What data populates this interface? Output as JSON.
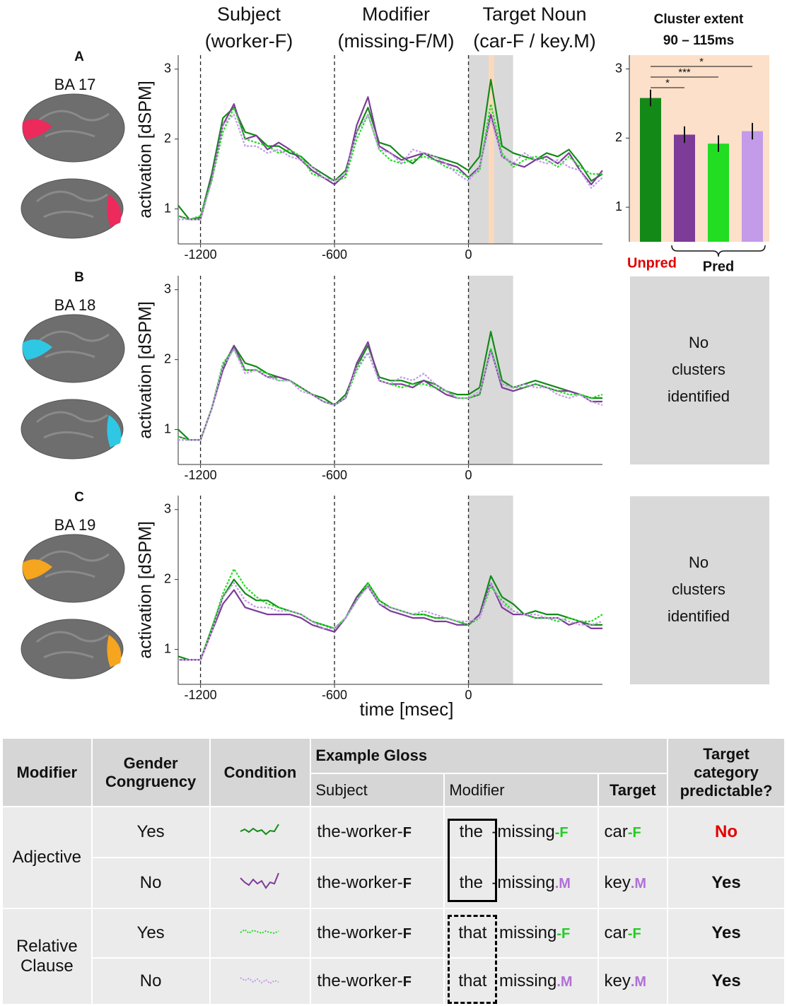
{
  "chart_data": [
    {
      "type": "line",
      "panel": "A",
      "region": "BA 17",
      "region_color": "#ec2a5c",
      "y_label": "activation [dSPM]",
      "annotations": [
        {
          "lines": [
            "Subject",
            "(worker-F)"
          ]
        },
        {
          "lines": [
            "Modifier",
            "(missing-F/M)"
          ]
        },
        {
          "lines": [
            "Target Noun",
            "(car-F / key.M)"
          ]
        }
      ],
      "xlim": [
        -1300,
        600
      ],
      "ylim": [
        0.5,
        3.2
      ],
      "xticks": [
        -1200,
        -600,
        0
      ],
      "yticks": [
        1,
        2,
        3
      ],
      "vlines": [
        -1200,
        -600,
        0
      ],
      "shaded_regions": [
        {
          "x": [
            0,
            200
          ],
          "color": "#d9d9d9"
        },
        {
          "x": [
            90,
            115
          ],
          "color": "#fcd9bd"
        }
      ],
      "x": [
        -1300,
        -1250,
        -1200,
        -1150,
        -1100,
        -1050,
        -1000,
        -950,
        -900,
        -850,
        -800,
        -750,
        -700,
        -650,
        -600,
        -550,
        -500,
        -450,
        -400,
        -350,
        -300,
        -250,
        -200,
        -150,
        -100,
        -50,
        0,
        50,
        100,
        150,
        200,
        250,
        300,
        350,
        400,
        450,
        500,
        550,
        600
      ],
      "series": [
        {
          "color": "#138a17",
          "style": "solid",
          "values": [
            1.05,
            0.85,
            0.88,
            1.5,
            2.3,
            2.45,
            2.1,
            2.05,
            1.9,
            1.9,
            1.8,
            1.75,
            1.6,
            1.5,
            1.4,
            1.55,
            2.1,
            2.45,
            1.95,
            1.9,
            1.75,
            1.65,
            1.8,
            1.75,
            1.7,
            1.65,
            1.55,
            1.75,
            2.85,
            1.9,
            1.8,
            1.75,
            1.7,
            1.8,
            1.75,
            1.85,
            1.65,
            1.4,
            1.5
          ]
        },
        {
          "color": "#7d3c98",
          "style": "solid",
          "values": [
            0.9,
            0.85,
            0.85,
            1.45,
            2.2,
            2.5,
            2.0,
            2.05,
            1.85,
            1.95,
            1.85,
            1.7,
            1.55,
            1.45,
            1.35,
            1.5,
            2.2,
            2.6,
            1.9,
            1.8,
            1.7,
            1.75,
            1.8,
            1.7,
            1.65,
            1.6,
            1.45,
            1.6,
            2.35,
            1.75,
            1.65,
            1.6,
            1.7,
            1.75,
            1.65,
            1.8,
            1.55,
            1.35,
            1.55
          ]
        },
        {
          "color": "#22dd22",
          "style": "dotted",
          "values": [
            0.9,
            0.85,
            0.9,
            1.4,
            2.1,
            2.45,
            2.0,
            1.95,
            1.9,
            1.8,
            1.85,
            1.75,
            1.5,
            1.45,
            1.4,
            1.45,
            2.0,
            2.35,
            1.85,
            1.7,
            1.65,
            1.7,
            1.75,
            1.7,
            1.6,
            1.55,
            1.45,
            1.55,
            2.5,
            1.8,
            1.6,
            1.7,
            1.75,
            1.7,
            1.6,
            1.75,
            1.6,
            1.5,
            1.5
          ]
        },
        {
          "color": "#c39be8",
          "style": "dotted",
          "values": [
            0.85,
            0.85,
            0.85,
            1.4,
            2.2,
            2.35,
            1.9,
            1.9,
            1.8,
            1.85,
            1.75,
            1.7,
            1.6,
            1.45,
            1.4,
            1.5,
            2.1,
            2.35,
            1.85,
            1.8,
            1.65,
            1.85,
            1.8,
            1.75,
            1.65,
            1.5,
            1.4,
            1.6,
            2.3,
            1.75,
            1.65,
            1.8,
            1.7,
            1.65,
            1.7,
            1.6,
            1.55,
            1.3,
            1.45
          ]
        }
      ]
    },
    {
      "type": "line",
      "panel": "B",
      "region": "BA 18",
      "region_color": "#2ec8e4",
      "y_label": "activation [dSPM]",
      "side_note": [
        "No",
        "clusters",
        "identified"
      ],
      "xlim": [
        -1300,
        600
      ],
      "ylim": [
        0.5,
        3.2
      ],
      "xticks": [
        -1200,
        -600,
        0
      ],
      "yticks": [
        1,
        2,
        3
      ],
      "vlines": [
        -1200,
        -600,
        0
      ],
      "shaded_regions": [
        {
          "x": [
            0,
            200
          ],
          "color": "#d9d9d9"
        }
      ],
      "x": [
        -1300,
        -1250,
        -1200,
        -1150,
        -1100,
        -1050,
        -1000,
        -950,
        -900,
        -850,
        -800,
        -750,
        -700,
        -650,
        -600,
        -550,
        -500,
        -450,
        -400,
        -350,
        -300,
        -250,
        -200,
        -150,
        -100,
        -50,
        0,
        50,
        100,
        150,
        200,
        250,
        300,
        350,
        400,
        450,
        500,
        550,
        600
      ],
      "series": [
        {
          "color": "#138a17",
          "style": "solid",
          "values": [
            1.0,
            0.85,
            0.85,
            1.3,
            1.9,
            2.2,
            1.95,
            1.9,
            1.8,
            1.75,
            1.7,
            1.6,
            1.5,
            1.45,
            1.35,
            1.5,
            1.9,
            2.2,
            1.75,
            1.7,
            1.7,
            1.65,
            1.7,
            1.65,
            1.55,
            1.5,
            1.5,
            1.6,
            2.4,
            1.7,
            1.6,
            1.65,
            1.7,
            1.65,
            1.6,
            1.55,
            1.5,
            1.45,
            1.45
          ]
        },
        {
          "color": "#7d3c98",
          "style": "solid",
          "values": [
            0.9,
            0.85,
            0.85,
            1.3,
            1.85,
            2.2,
            1.85,
            1.85,
            1.75,
            1.75,
            1.7,
            1.6,
            1.5,
            1.4,
            1.35,
            1.45,
            1.95,
            2.25,
            1.7,
            1.65,
            1.65,
            1.6,
            1.7,
            1.6,
            1.5,
            1.45,
            1.45,
            1.5,
            2.15,
            1.6,
            1.55,
            1.6,
            1.65,
            1.6,
            1.55,
            1.55,
            1.5,
            1.4,
            1.4
          ]
        },
        {
          "color": "#22dd22",
          "style": "dotted",
          "values": [
            0.9,
            0.85,
            0.85,
            1.3,
            1.95,
            2.15,
            1.85,
            1.85,
            1.8,
            1.7,
            1.7,
            1.6,
            1.5,
            1.4,
            1.35,
            1.45,
            1.85,
            2.1,
            1.7,
            1.65,
            1.6,
            1.65,
            1.65,
            1.6,
            1.55,
            1.45,
            1.45,
            1.5,
            2.15,
            1.65,
            1.6,
            1.6,
            1.65,
            1.6,
            1.55,
            1.5,
            1.5,
            1.45,
            1.5
          ]
        },
        {
          "color": "#c39be8",
          "style": "dotted",
          "values": [
            0.85,
            0.85,
            0.85,
            1.3,
            1.9,
            2.15,
            1.8,
            1.85,
            1.75,
            1.7,
            1.7,
            1.55,
            1.5,
            1.4,
            1.35,
            1.45,
            1.9,
            2.1,
            1.7,
            1.65,
            1.75,
            1.7,
            1.8,
            1.65,
            1.55,
            1.45,
            1.45,
            1.55,
            2.1,
            1.65,
            1.6,
            1.65,
            1.6,
            1.6,
            1.5,
            1.45,
            1.5,
            1.4,
            1.35
          ]
        }
      ]
    },
    {
      "type": "line",
      "panel": "C",
      "region": "BA 19",
      "region_color": "#f5a51e",
      "y_label": "activation [dSPM]",
      "x_label": "time [msec]",
      "side_note": [
        "No",
        "clusters",
        "identified"
      ],
      "xlim": [
        -1300,
        600
      ],
      "ylim": [
        0.5,
        3.2
      ],
      "xticks": [
        -1200,
        -600,
        0
      ],
      "yticks": [
        1,
        2,
        3
      ],
      "vlines": [
        -1200,
        -600,
        0
      ],
      "shaded_regions": [
        {
          "x": [
            0,
            200
          ],
          "color": "#d9d9d9"
        }
      ],
      "x": [
        -1300,
        -1250,
        -1200,
        -1150,
        -1100,
        -1050,
        -1000,
        -950,
        -900,
        -850,
        -800,
        -750,
        -700,
        -650,
        -600,
        -550,
        -500,
        -450,
        -400,
        -350,
        -300,
        -250,
        -200,
        -150,
        -100,
        -50,
        0,
        50,
        100,
        150,
        200,
        250,
        300,
        350,
        400,
        450,
        500,
        550,
        600
      ],
      "series": [
        {
          "color": "#138a17",
          "style": "solid",
          "values": [
            0.9,
            0.85,
            0.85,
            1.3,
            1.75,
            2.0,
            1.8,
            1.7,
            1.7,
            1.6,
            1.55,
            1.5,
            1.4,
            1.35,
            1.3,
            1.45,
            1.75,
            1.95,
            1.7,
            1.6,
            1.55,
            1.5,
            1.5,
            1.45,
            1.45,
            1.4,
            1.35,
            1.5,
            2.05,
            1.75,
            1.65,
            1.5,
            1.55,
            1.5,
            1.5,
            1.45,
            1.4,
            1.35,
            1.35
          ]
        },
        {
          "color": "#7d3c98",
          "style": "solid",
          "values": [
            0.85,
            0.85,
            0.85,
            1.25,
            1.65,
            1.85,
            1.6,
            1.55,
            1.5,
            1.5,
            1.5,
            1.45,
            1.35,
            1.3,
            1.25,
            1.45,
            1.75,
            1.9,
            1.65,
            1.55,
            1.5,
            1.45,
            1.45,
            1.4,
            1.4,
            1.35,
            1.35,
            1.5,
            1.95,
            1.6,
            1.5,
            1.5,
            1.45,
            1.45,
            1.45,
            1.35,
            1.4,
            1.3,
            1.3
          ]
        },
        {
          "color": "#22dd22",
          "style": "dotted",
          "values": [
            0.85,
            0.85,
            0.85,
            1.3,
            1.8,
            2.15,
            1.9,
            1.75,
            1.65,
            1.6,
            1.55,
            1.5,
            1.4,
            1.35,
            1.3,
            1.45,
            1.7,
            1.95,
            1.7,
            1.6,
            1.55,
            1.5,
            1.5,
            1.45,
            1.45,
            1.4,
            1.35,
            1.45,
            1.9,
            1.7,
            1.55,
            1.5,
            1.45,
            1.45,
            1.4,
            1.45,
            1.4,
            1.4,
            1.5
          ]
        },
        {
          "color": "#c39be8",
          "style": "dotted",
          "values": [
            0.85,
            0.85,
            0.85,
            1.25,
            1.75,
            1.95,
            1.7,
            1.6,
            1.6,
            1.55,
            1.55,
            1.5,
            1.4,
            1.3,
            1.3,
            1.45,
            1.7,
            1.9,
            1.65,
            1.6,
            1.55,
            1.5,
            1.55,
            1.5,
            1.45,
            1.4,
            1.4,
            1.45,
            1.95,
            1.65,
            1.55,
            1.5,
            1.5,
            1.45,
            1.45,
            1.4,
            1.35,
            1.35,
            1.4
          ]
        }
      ]
    },
    {
      "type": "bar",
      "title": [
        "Cluster extent",
        "90 – 115ms"
      ],
      "background": "#fde0c9",
      "categories": [
        null,
        null,
        null,
        null
      ],
      "values": [
        2.58,
        2.05,
        1.92,
        2.1
      ],
      "errors": [
        0.12,
        0.12,
        0.12,
        0.12
      ],
      "colors": [
        "#138a17",
        "#7d3c98",
        "#22dd22",
        "#c39be8"
      ],
      "ylim": [
        0.5,
        3.2
      ],
      "yticks": [
        1,
        2,
        3
      ],
      "significance_labels": [
        "*",
        "***",
        "*"
      ],
      "group_labels": [
        "Unpred",
        "Pred"
      ]
    }
  ],
  "table": {
    "header": {
      "modifier": "Modifier",
      "congruency": "Gender Congruency",
      "condition": "Condition",
      "gloss": "Example Gloss",
      "subject": "Subject",
      "gloss_modifier": "Modifier",
      "target": "Target",
      "predictable": "Target category predictable?"
    },
    "rows": [
      {
        "group": "Adjective",
        "congruency": "Yes",
        "subject": "the-worker-",
        "subject_suffix": "F",
        "modifier_word": "the",
        "modifier": "-missing",
        "modifier_suffix": "-F",
        "target": "car",
        "target_suffix": "-F",
        "predictable": "No"
      },
      {
        "congruency": "No",
        "subject": "the-worker-",
        "subject_suffix": "F",
        "modifier_word": "the",
        "modifier": "-missing",
        "modifier_suffix": ".M",
        "target": "key",
        "target_suffix": ".M",
        "predictable": "Yes"
      },
      {
        "group": "Relative Clause",
        "congruency": "Yes",
        "subject": "the-worker-",
        "subject_suffix": "F",
        "modifier_word": "that",
        "modifier": "missing",
        "modifier_suffix": "-F",
        "target": "car",
        "target_suffix": "-F",
        "predictable": "Yes"
      },
      {
        "congruency": "No",
        "subject": "the-worker-",
        "subject_suffix": "F",
        "modifier_word": "that",
        "modifier": "missing",
        "modifier_suffix": ".M",
        "target": "key",
        "target_suffix": ".M",
        "predictable": "Yes"
      }
    ]
  }
}
